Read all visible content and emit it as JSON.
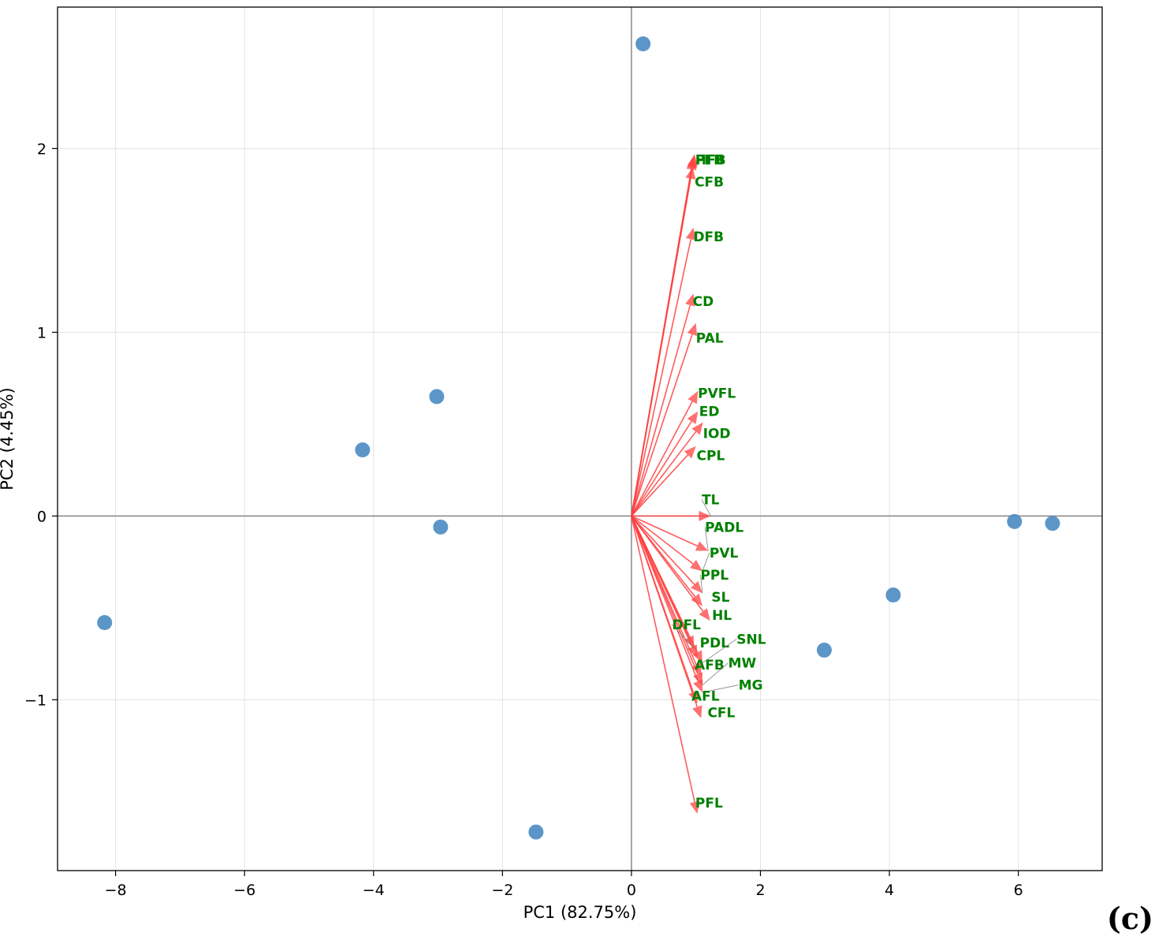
{
  "chart_data": {
    "type": "scatter",
    "subtype": "pca-biplot",
    "title": "",
    "xlabel": "PC1 (82.75%)",
    "ylabel": "PC2 (4.45%)",
    "xlim": [
      -8.9,
      7.3
    ],
    "ylim": [
      -1.93,
      2.77
    ],
    "xticks": [
      -8,
      -6,
      -4,
      -2,
      0,
      2,
      4,
      6
    ],
    "xtick_labels": [
      "−8",
      "−6",
      "−4",
      "−2",
      "0",
      "2",
      "4",
      "6"
    ],
    "yticks": [
      -1,
      0,
      1,
      2
    ],
    "ytick_labels": [
      "−1",
      "0",
      "1",
      "2"
    ],
    "grid": true,
    "origin_lines": true,
    "panel_label": "(c)",
    "colors": {
      "points": "#4a8bc2",
      "arrows": "#ff4040",
      "labels": "#008000",
      "grid": "#e3e3e3",
      "origin": "#808080"
    },
    "scores": [
      {
        "x": 0.18,
        "y": 2.57
      },
      {
        "x": -3.02,
        "y": 0.65
      },
      {
        "x": -4.17,
        "y": 0.36
      },
      {
        "x": -2.96,
        "y": -0.06
      },
      {
        "x": -8.17,
        "y": -0.58
      },
      {
        "x": -1.48,
        "y": -1.72
      },
      {
        "x": 5.94,
        "y": -0.03
      },
      {
        "x": 6.53,
        "y": -0.04
      },
      {
        "x": 4.06,
        "y": -0.43
      },
      {
        "x": 2.99,
        "y": -0.73
      }
    ],
    "loadings": [
      {
        "name": "FFB",
        "x": 0.98,
        "y": 1.97,
        "lx": 0.99,
        "ly": 1.94
      },
      {
        "name": "HFB",
        "x": 0.97,
        "y": 1.96,
        "lx": 0.99,
        "ly": 1.94
      },
      {
        "name": "PFB",
        "x": 0.96,
        "y": 1.95,
        "lx": 0.99,
        "ly": 1.94
      },
      {
        "name": "CFB",
        "x": 0.95,
        "y": 1.9,
        "lx": 0.98,
        "ly": 1.82
      },
      {
        "name": "DFB",
        "x": 0.96,
        "y": 1.57,
        "lx": 0.96,
        "ly": 1.52
      },
      {
        "name": "CD",
        "x": 0.96,
        "y": 1.21,
        "lx": 0.95,
        "ly": 1.17
      },
      {
        "name": "PAL",
        "x": 1.0,
        "y": 1.05,
        "lx": 1.0,
        "ly": 0.97
      },
      {
        "name": "PVFL",
        "x": 1.03,
        "y": 0.68,
        "lx": 1.03,
        "ly": 0.67
      },
      {
        "name": "ED",
        "x": 1.03,
        "y": 0.57,
        "lx": 1.05,
        "ly": 0.57
      },
      {
        "name": "IOD",
        "x": 1.11,
        "y": 0.51,
        "lx": 1.11,
        "ly": 0.45
      },
      {
        "name": "CPL",
        "x": 1.0,
        "y": 0.38,
        "lx": 1.01,
        "ly": 0.33
      },
      {
        "name": "TL",
        "x": 1.23,
        "y": 0.0,
        "lx": 1.09,
        "ly": 0.09
      },
      {
        "name": "PADL",
        "x": 1.19,
        "y": -0.19,
        "lx": 1.14,
        "ly": -0.06
      },
      {
        "name": "PVL",
        "x": 1.1,
        "y": -0.3,
        "lx": 1.21,
        "ly": -0.2
      },
      {
        "name": "PPL",
        "x": 1.1,
        "y": -0.42,
        "lx": 1.07,
        "ly": -0.32
      },
      {
        "name": "SL",
        "x": 1.1,
        "y": -0.49,
        "lx": 1.24,
        "ly": -0.44
      },
      {
        "name": "HL",
        "x": 1.22,
        "y": -0.57,
        "lx": 1.25,
        "ly": -0.54
      },
      {
        "name": "DFL",
        "x": 0.97,
        "y": -0.72,
        "lx": 0.63,
        "ly": -0.59
      },
      {
        "name": "PDL",
        "x": 1.02,
        "y": -0.77,
        "lx": 1.06,
        "ly": -0.69
      },
      {
        "name": "SNL",
        "x": 1.1,
        "y": -0.8,
        "lx": 1.63,
        "ly": -0.67
      },
      {
        "name": "AFB",
        "x": 1.08,
        "y": -0.87,
        "lx": 0.98,
        "ly": -0.81
      },
      {
        "name": "MW",
        "x": 1.1,
        "y": -0.92,
        "lx": 1.5,
        "ly": -0.8
      },
      {
        "name": "MG",
        "x": 1.1,
        "y": -0.96,
        "lx": 1.66,
        "ly": -0.92
      },
      {
        "name": "AFL",
        "x": 1.02,
        "y": -1.02,
        "lx": 0.93,
        "ly": -0.98
      },
      {
        "name": "CFL",
        "x": 1.08,
        "y": -1.1,
        "lx": 1.18,
        "ly": -1.07
      },
      {
        "name": "PFL",
        "x": 1.02,
        "y": -1.62,
        "lx": 0.99,
        "ly": -1.56
      }
    ]
  }
}
